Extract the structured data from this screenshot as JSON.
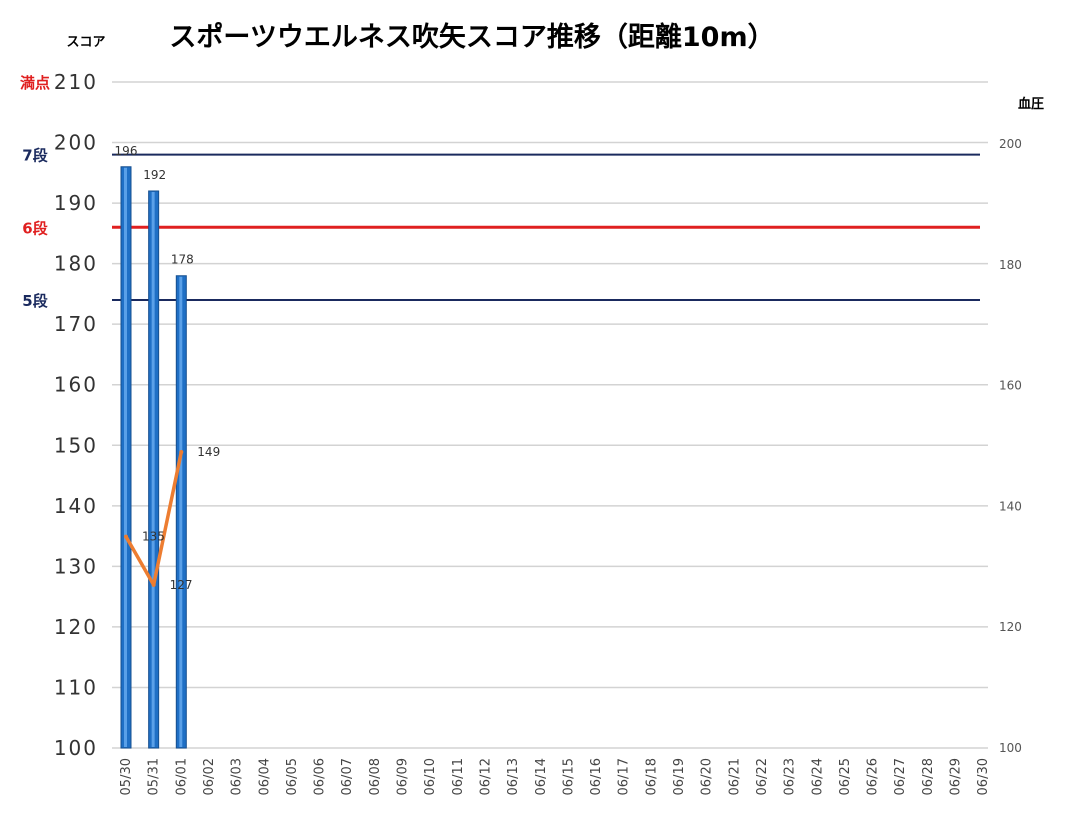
{
  "page": {
    "title": "スポーツウエルネス吹矢スコア推移（距離10m）",
    "left_axis_label": "スコア",
    "right_axis_label": "血圧"
  },
  "chart_data": {
    "type": "bar",
    "title": "スポーツウエルネス吹矢スコア推移（距離10m）",
    "ylabel": "スコア",
    "y2label": "血圧",
    "categories": [
      "05/30",
      "05/31",
      "06/01",
      "06/02",
      "06/03",
      "06/04",
      "06/05",
      "06/06",
      "06/07",
      "06/08",
      "06/09",
      "06/10",
      "06/11",
      "06/12",
      "06/13",
      "06/14",
      "06/15",
      "06/16",
      "06/17",
      "06/18",
      "06/19",
      "06/20",
      "06/21",
      "06/22",
      "06/23",
      "06/24",
      "06/25",
      "06/26",
      "06/27",
      "06/28",
      "06/29",
      "06/30"
    ],
    "ylim": [
      100,
      210
    ],
    "y2lim": [
      100,
      200
    ],
    "yticks": [
      100,
      110,
      120,
      130,
      140,
      150,
      160,
      170,
      180,
      190,
      200,
      210
    ],
    "y2ticks": [
      100,
      120,
      140,
      160,
      180,
      200
    ],
    "grid": true,
    "series": [
      {
        "type": "bar",
        "axis": "left",
        "color": "#1f6fc5",
        "values": [
          196,
          192,
          178,
          null,
          null,
          null,
          null,
          null,
          null,
          null,
          null,
          null,
          null,
          null,
          null,
          null,
          null,
          null,
          null,
          null,
          null,
          null,
          null,
          null,
          null,
          null,
          null,
          null,
          null,
          null,
          null,
          null
        ]
      },
      {
        "type": "line",
        "axis": "right",
        "color": "#ed7d31",
        "values": [
          135,
          127,
          149,
          null,
          null,
          null,
          null,
          null,
          null,
          null,
          null,
          null,
          null,
          null,
          null,
          null,
          null,
          null,
          null,
          null,
          null,
          null,
          null,
          null,
          null,
          null,
          null,
          null,
          null,
          null,
          null,
          null
        ]
      }
    ],
    "reference_lines": [
      {
        "label": "満点",
        "value": 210,
        "color": "#e02020"
      },
      {
        "label": "7段",
        "value": 198,
        "color": "#1a2a5e"
      },
      {
        "label": "6段",
        "value": 186,
        "color": "#e02020"
      },
      {
        "label": "5段",
        "value": 174,
        "color": "#1a2a5e"
      }
    ]
  }
}
